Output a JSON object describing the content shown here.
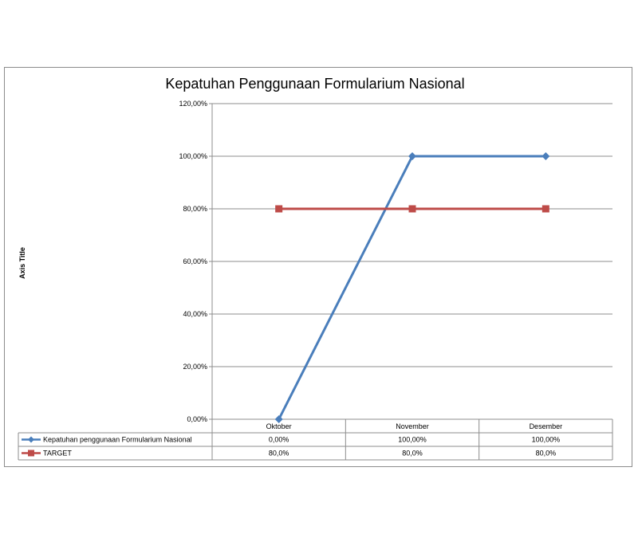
{
  "chart_data": {
    "type": "line",
    "title": "Kepatuhan Penggunaan Formularium Nasional",
    "ylabel": "Axis Title",
    "xlabel": "",
    "categories": [
      "Oktober",
      "November",
      "Desember"
    ],
    "ylim": [
      0,
      1.2
    ],
    "yticks": [
      "0,00%",
      "20,00%",
      "40,00%",
      "60,00%",
      "80,00%",
      "100,00%",
      "120,00%"
    ],
    "grid": true,
    "legend": "data-table",
    "series": [
      {
        "name": "Kepatuhan penggunaan Formularium Nasional",
        "values": [
          0,
          1,
          1
        ],
        "labels": [
          "0,00%",
          "100,00%",
          "100,00%"
        ],
        "color": "#4a7ebb",
        "marker": "diamond"
      },
      {
        "name": "TARGET",
        "values": [
          0.8,
          0.8,
          0.8
        ],
        "labels": [
          "80,0%",
          "80,0%",
          "80,0%"
        ],
        "color": "#be4b48",
        "marker": "square"
      }
    ]
  }
}
